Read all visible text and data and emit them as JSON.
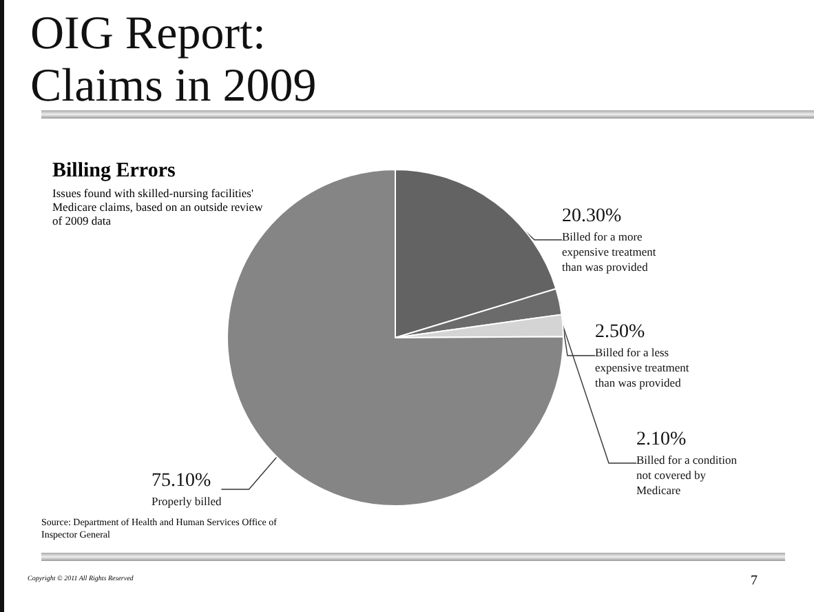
{
  "chart_data": {
    "type": "pie",
    "title": "OIG Report: Claims in 2009",
    "subtitle": "Billing Errors",
    "categories": [
      "Billed for a more expensive treatment than was provided",
      "Billed for a less expensive treatment than was provided",
      "Billed for a condition not covered by Medicare",
      "Properly billed"
    ],
    "values": [
      20.3,
      2.5,
      2.1,
      75.1
    ],
    "value_labels": [
      "20.30%",
      "2.50%",
      "2.10%",
      "75.10%"
    ],
    "colors": [
      "#636363",
      "#6b6b6b",
      "#d4d4d4",
      "#858585"
    ],
    "annotations": [
      "Issues found with skilled-nursing facilities' Medicare claims, based on an outside review of 2009 data",
      "Source:  Department of Health and Human Services Office of Inspector General",
      "Copyright © 2011 All Rights Reserved",
      "7"
    ]
  }
}
